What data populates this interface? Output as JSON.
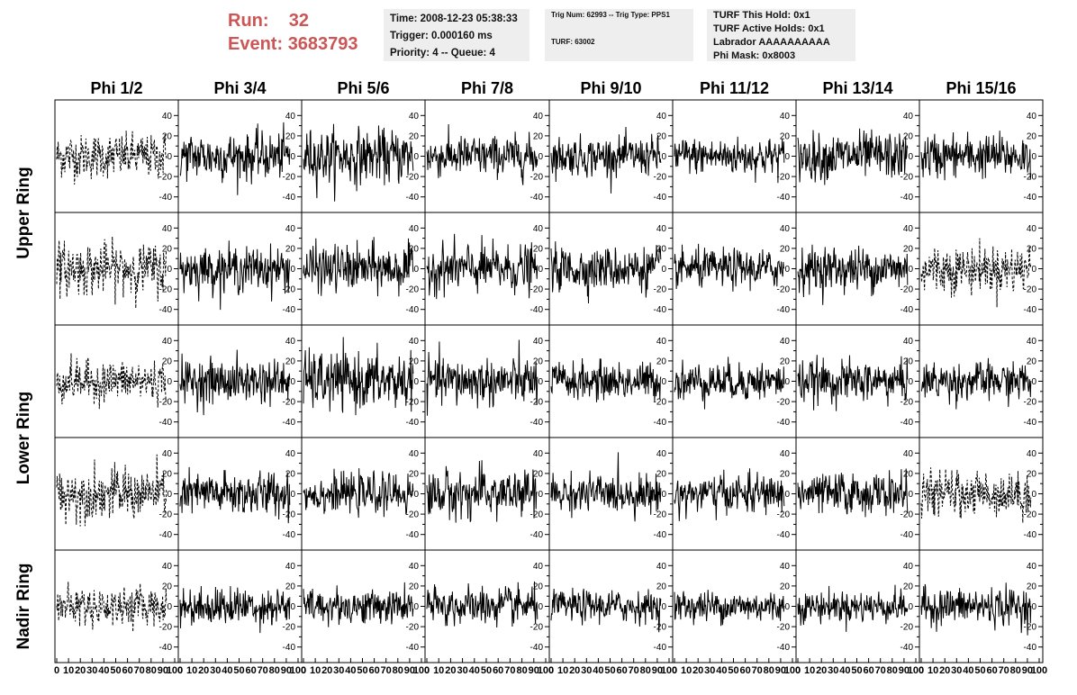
{
  "header": {
    "run_label": "Run:",
    "run_value": "32",
    "event_label": "Event:",
    "event_value": "3683793",
    "run_color": "#cc5555",
    "time_box": {
      "line1": "Time: 2008-12-23 05:38:33",
      "line2": "Trigger: 0.000160 ms",
      "line3": "Priority: 4 -- Queue: 4"
    },
    "trig_box": {
      "line1": "Trig Num: 62993 -- Trig Type: PPS1",
      "line2": "TURF: 63002"
    },
    "turf_box": {
      "line1": "TURF This Hold: 0x1",
      "line2": "TURF Active Holds: 0x1",
      "line3": "Labrador AAAAAAAAAA",
      "line4": "Phi Mask: 0x8003"
    }
  },
  "chart_data": {
    "type": "line",
    "columns": [
      "Phi 1/2",
      "Phi 3/4",
      "Phi 5/6",
      "Phi 7/8",
      "Phi 9/10",
      "Phi 11/12",
      "Phi 13/14",
      "Phi 15/16"
    ],
    "rows": [
      "Upper Ring",
      "Lower Ring",
      "Nadir Ring"
    ],
    "row_count": 5,
    "xlim": [
      0,
      100
    ],
    "ylim": [
      -50,
      50
    ],
    "y_ticks": [
      -40,
      -20,
      0,
      20,
      40
    ],
    "x_ticks": [
      0,
      10,
      20,
      30,
      40,
      50,
      60,
      70,
      80,
      90,
      100
    ],
    "x_tick_labels": [
      "0",
      "10",
      "20",
      "30",
      "40",
      "50",
      "60",
      "70",
      "80",
      "90",
      "100"
    ],
    "line_color": "#000000",
    "dashed_panels": [
      [
        0,
        0
      ],
      [
        1,
        0
      ],
      [
        1,
        7
      ],
      [
        2,
        0
      ],
      [
        3,
        0
      ],
      [
        3,
        7
      ],
      [
        4,
        0
      ]
    ],
    "panel_amplitude": [
      [
        14,
        15,
        17,
        13,
        12,
        12,
        15,
        14
      ],
      [
        16,
        14,
        15,
        15,
        14,
        12,
        14,
        15
      ],
      [
        13,
        14,
        18,
        15,
        12,
        12,
        13,
        12
      ],
      [
        16,
        14,
        12,
        15,
        12,
        12,
        13,
        14
      ],
      [
        12,
        12,
        11,
        12,
        10,
        10,
        10,
        12
      ]
    ]
  }
}
